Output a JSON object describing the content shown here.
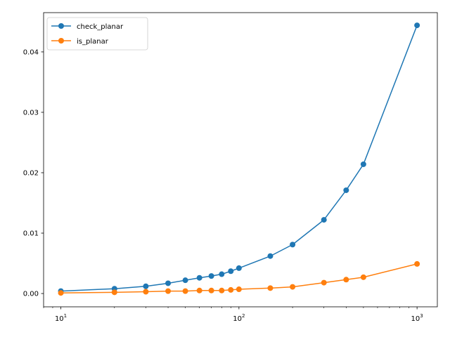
{
  "chart_data": {
    "type": "line",
    "title": "",
    "xlabel": "",
    "ylabel": "",
    "x_scale": "log",
    "xlim": [
      8,
      1300
    ],
    "ylim": [
      -0.0022,
      0.0465
    ],
    "grid": false,
    "legend_position": "top-left",
    "x_tick_labels": [
      {
        "value": 10,
        "base": "10",
        "exp": "1"
      },
      {
        "value": 100,
        "base": "10",
        "exp": "2"
      },
      {
        "value": 1000,
        "base": "10",
        "exp": "3"
      }
    ],
    "y_ticks": [
      0.0,
      0.01,
      0.02,
      0.03,
      0.04
    ],
    "y_tick_labels": [
      "0.00",
      "0.01",
      "0.02",
      "0.03",
      "0.04"
    ],
    "x": [
      10,
      20,
      30,
      40,
      50,
      60,
      70,
      80,
      90,
      100,
      150,
      200,
      300,
      400,
      500,
      1000
    ],
    "series": [
      {
        "name": "check_planar",
        "color": "#1f77b4",
        "values": [
          0.0004,
          0.0008,
          0.0012,
          0.0017,
          0.0022,
          0.0026,
          0.0029,
          0.0032,
          0.0037,
          0.0042,
          0.0062,
          0.0081,
          0.0122,
          0.0171,
          0.0214,
          0.0444
        ]
      },
      {
        "name": "is_planar",
        "color": "#ff7f0e",
        "values": [
          0.0001,
          0.0002,
          0.0003,
          0.0004,
          0.0004,
          0.0005,
          0.0005,
          0.0005,
          0.0006,
          0.0007,
          0.0009,
          0.0011,
          0.0018,
          0.0023,
          0.0027,
          0.0049
        ]
      }
    ]
  }
}
